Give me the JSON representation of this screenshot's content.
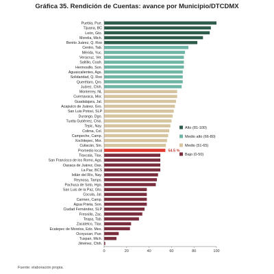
{
  "chart_data": {
    "type": "bar",
    "orientation": "horizontal",
    "title": "Gráfica 35. Rendición de Cuentas: avance por Municipio/DTCDMX",
    "source": "Fuente: elaboración propia.",
    "xlim": [
      0,
      100
    ],
    "xticks": [
      "0",
      "20",
      "40",
      "60",
      "80",
      "100"
    ],
    "grid": false,
    "legend_position": "right",
    "legend": [
      {
        "key": "alto",
        "label": "Alto (81-100)",
        "color": "#2e5c4a"
      },
      {
        "key": "medio_alto",
        "label": "Medio alto (66-80)",
        "color": "#6fb5a5"
      },
      {
        "key": "medio",
        "label": "Medio (51-65)",
        "color": "#d6c3a0"
      },
      {
        "key": "bajo",
        "label": "Bajo (0-50)",
        "color": "#7a2d3c"
      }
    ],
    "highlight": {
      "category": "Promedio local",
      "color": "#e03a2f",
      "label": "54.5 %"
    },
    "categories": [
      "Puebla, Pue.",
      "Tijuana, BC",
      "León, Gto.",
      "Morelia, Mich.",
      "Benito Juárez, Q. Roo",
      "Centro, Tab.",
      "Mérida, Yuc.",
      "Veracruz, Ver.",
      "Saltillo, Coah.",
      "Hermosillo, Son.",
      "Aguascalientes, Ags.",
      "Solidaridad, Q. Roo",
      "Querétaro, Qro.",
      "Juárez, Chih.",
      "Monterrey, NL",
      "Cuernavaca, Mor.",
      "Guadalajara, Jal.",
      "Acapulco de Juárez, Gro.",
      "San Luis Potosí, SLP",
      "Durango, Dgo.",
      "Tuxtla Gutiérrez, Chis.",
      "Tepic, Nay.",
      "Colima, Col.",
      "Campeche, Camp.",
      "Xochitepec, Mor.",
      "Culiacán, Sin.",
      "Promedio local",
      "Tlaxcala, Tlax.",
      "San Francisco de los Romo, Ags.",
      "Oaxaca de Juárez, Oax.",
      "La Paz, BCS",
      "Ixtlán del Río, Nay.",
      "Reynosa, Tamps.",
      "Pachuca de Soto, Hgo.",
      "San Luis de la Paz, Gto.",
      "Cocula, Jal.",
      "Carmen, Camp.",
      "Agua Prieta, Son.",
      "Ciudad Fernández, SLP",
      "Fresnillo, Zac.",
      "Teapa, Tab.",
      "Zacatelco, Tlax.",
      "Ecatepec de Morelos, Edo. Mex.",
      "Ocoyucan, Pue.",
      "Tuxpan, Mich.",
      "Jiménez, Chih."
    ],
    "values": [
      100,
      95,
      94,
      88,
      83,
      75,
      72,
      71,
      71,
      71,
      70,
      70,
      70,
      69,
      65,
      65,
      64,
      63,
      62,
      61,
      60,
      59,
      58,
      57,
      56,
      55,
      54.5,
      50,
      50,
      50,
      50,
      48,
      47,
      46,
      38,
      38,
      38,
      38,
      36,
      34,
      31,
      24,
      23,
      13,
      11,
      1
    ],
    "levels": [
      "alto",
      "alto",
      "alto",
      "alto",
      "alto",
      "medio_alto",
      "medio_alto",
      "medio_alto",
      "medio_alto",
      "medio_alto",
      "medio_alto",
      "medio_alto",
      "medio_alto",
      "medio_alto",
      "medio",
      "medio",
      "medio",
      "medio",
      "medio",
      "medio",
      "medio",
      "medio",
      "medio",
      "medio",
      "medio",
      "medio",
      "promedio",
      "bajo",
      "bajo",
      "bajo",
      "bajo",
      "bajo",
      "bajo",
      "bajo",
      "bajo",
      "bajo",
      "bajo",
      "bajo",
      "bajo",
      "bajo",
      "bajo",
      "bajo",
      "bajo",
      "bajo",
      "bajo",
      "bajo"
    ]
  }
}
